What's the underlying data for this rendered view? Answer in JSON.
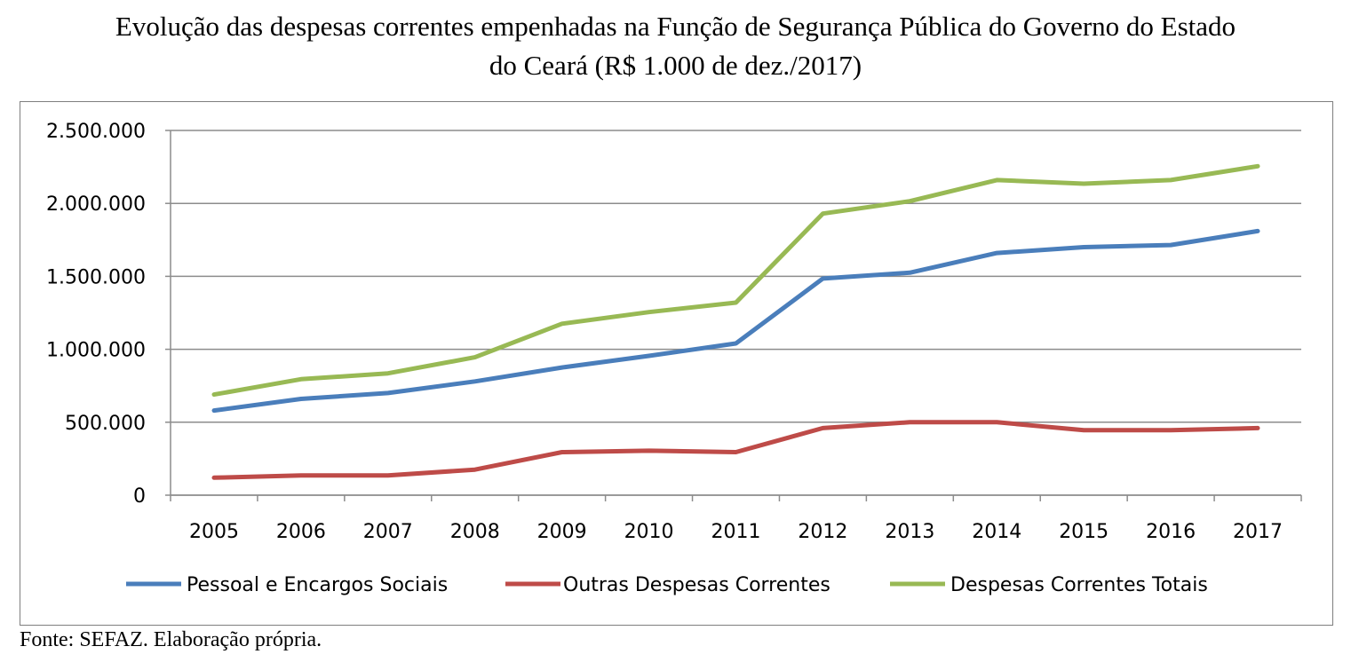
{
  "title_line1": "Evolução das despesas correntes empenhadas na Função de Segurança Pública do Governo do Estado",
  "title_line2": "do Ceará (R$ 1.000 de dez./2017)",
  "source": "Fonte: SEFAZ. Elaboração própria.",
  "chart_data": {
    "type": "line",
    "title": "Evolução das despesas correntes empenhadas na Função de Segurança Pública do Governo do Estado do Ceará (R$ 1.000 de dez./2017)",
    "x": [
      "2005",
      "2006",
      "2007",
      "2008",
      "2009",
      "2010",
      "2011",
      "2012",
      "2013",
      "2014",
      "2015",
      "2016",
      "2017"
    ],
    "ylim": [
      0,
      2500000
    ],
    "yticks": [
      0,
      500000,
      1000000,
      1500000,
      2000000,
      2500000
    ],
    "ytick_labels": [
      "0",
      "500.000",
      "1.000.000",
      "1.500.000",
      "2.000.000",
      "2.500.000"
    ],
    "grid": true,
    "legend_position": "bottom",
    "series": [
      {
        "name": "Pessoal e Encargos Sociais",
        "color": "#4a7ebb",
        "values": [
          580000,
          660000,
          700000,
          780000,
          875000,
          955000,
          1040000,
          1485000,
          1525000,
          1660000,
          1700000,
          1715000,
          1810000
        ]
      },
      {
        "name": "Outras Despesas Correntes",
        "color": "#be4b48",
        "values": [
          120000,
          135000,
          135000,
          175000,
          295000,
          305000,
          295000,
          460000,
          500000,
          500000,
          445000,
          445000,
          460000
        ]
      },
      {
        "name": "Despesas Correntes Totais",
        "color": "#98b954",
        "values": [
          690000,
          795000,
          835000,
          945000,
          1175000,
          1255000,
          1320000,
          1930000,
          2015000,
          2160000,
          2135000,
          2160000,
          2255000
        ]
      }
    ]
  }
}
